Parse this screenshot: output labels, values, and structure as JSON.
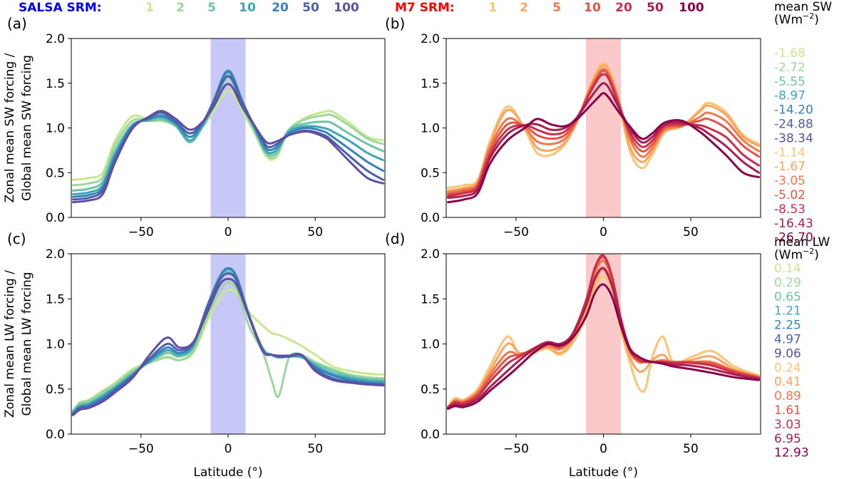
{
  "header": {
    "salsa_label": "SALSA SRM:",
    "salsa_color": "#0000ff",
    "m7_label": "M7 SRM:",
    "m7_color": "#ff0000",
    "levels": [
      "1",
      "2",
      "5",
      "10",
      "20",
      "50",
      "100"
    ],
    "salsa_colors": [
      "#c6e88f",
      "#9dd69f",
      "#6cc3a8",
      "#3fa6b8",
      "#3682ba",
      "#4d5fa9",
      "#5e4fa2"
    ],
    "m7_colors": [
      "#fdc474",
      "#f9a45f",
      "#f0784b",
      "#e35346",
      "#c92f4b",
      "#a81e4f",
      "#8a004b"
    ]
  },
  "legend_sw": {
    "title_line1": "mean SW",
    "title_line2": "(Wm",
    "title_sup": "−2",
    "title_end": ")",
    "salsa_values": [
      "-1.68",
      "-2.72",
      "-5.55",
      "-8.97",
      "-14.20",
      "-24.88",
      "-38.34"
    ],
    "m7_values": [
      "-1.14",
      "-1.67",
      "-3.05",
      "-5.02",
      "-8.53",
      "-16.43",
      "-26.70"
    ]
  },
  "legend_lw": {
    "title_line1": "mean LW",
    "title_line2": "(Wm",
    "title_sup": "−2",
    "title_end": ")",
    "salsa_values": [
      "0.14",
      "0.29",
      "0.65",
      "1.21",
      "2.25",
      "4.97",
      "9.06"
    ],
    "m7_values": [
      "0.24",
      "0.41",
      "0.89",
      "1.61",
      "3.03",
      "6.95",
      "12.93"
    ]
  },
  "chart_data": [
    {
      "type": "line",
      "panel_label": "(a)",
      "ylabel": [
        "Zonal mean SW forcing /",
        "Global mean SW forcing"
      ],
      "xlabel": "",
      "xlim": [
        -90,
        90
      ],
      "ylim": [
        0,
        2
      ],
      "xticks": [
        -50,
        0,
        50
      ],
      "xtick_labels": [
        "−50",
        "0",
        "50"
      ],
      "yticks": [
        0,
        0.5,
        1,
        1.5,
        2
      ],
      "ytick_labels": [
        "0.0",
        "0.5",
        "1.0",
        "1.5",
        "2.0"
      ],
      "shade": {
        "x": [
          -10,
          10
        ],
        "color": "#c8c8f8"
      },
      "x": [
        -89,
        -80,
        -72,
        -65,
        -55,
        -45,
        -38,
        -30,
        -22,
        -15,
        -8,
        -3,
        0,
        3,
        8,
        15,
        22,
        28,
        35,
        45,
        55,
        60,
        70,
        80,
        89
      ],
      "series": [
        {
          "values": [
            0.42,
            0.44,
            0.5,
            0.85,
            1.13,
            1.08,
            1.08,
            1.05,
            0.9,
            1.0,
            1.2,
            1.36,
            1.42,
            1.38,
            1.2,
            0.95,
            0.68,
            0.68,
            0.98,
            1.12,
            1.18,
            1.18,
            1.05,
            0.9,
            0.86
          ]
        },
        {
          "values": [
            0.36,
            0.38,
            0.45,
            0.8,
            1.08,
            1.08,
            1.08,
            1.02,
            0.85,
            1.0,
            1.24,
            1.44,
            1.5,
            1.44,
            1.24,
            0.97,
            0.7,
            0.7,
            0.98,
            1.1,
            1.14,
            1.14,
            1.02,
            0.88,
            0.82
          ]
        },
        {
          "values": [
            0.3,
            0.32,
            0.4,
            0.74,
            1.04,
            1.08,
            1.1,
            1.02,
            0.84,
            1.0,
            1.27,
            1.5,
            1.57,
            1.5,
            1.27,
            0.99,
            0.72,
            0.73,
            0.98,
            1.05,
            1.07,
            1.05,
            0.93,
            0.82,
            0.74
          ]
        },
        {
          "values": [
            0.26,
            0.28,
            0.36,
            0.7,
            1.02,
            1.1,
            1.12,
            1.04,
            0.86,
            1.02,
            1.3,
            1.55,
            1.62,
            1.55,
            1.3,
            1.01,
            0.74,
            0.76,
            0.96,
            1.02,
            1.0,
            0.96,
            0.85,
            0.72,
            0.64
          ]
        },
        {
          "values": [
            0.23,
            0.25,
            0.33,
            0.67,
            1.02,
            1.1,
            1.14,
            1.05,
            0.9,
            1.04,
            1.32,
            1.57,
            1.64,
            1.57,
            1.31,
            1.02,
            0.77,
            0.79,
            0.94,
            1.0,
            0.96,
            0.9,
            0.76,
            0.62,
            0.52
          ]
        },
        {
          "values": [
            0.2,
            0.22,
            0.3,
            0.64,
            1.0,
            1.12,
            1.17,
            1.07,
            0.94,
            1.05,
            1.3,
            1.52,
            1.58,
            1.52,
            1.28,
            1.03,
            0.8,
            0.82,
            0.92,
            0.97,
            0.92,
            0.85,
            0.68,
            0.52,
            0.42
          ]
        },
        {
          "values": [
            0.17,
            0.19,
            0.26,
            0.61,
            0.99,
            1.13,
            1.19,
            1.1,
            0.98,
            1.06,
            1.25,
            1.44,
            1.49,
            1.44,
            1.24,
            1.03,
            0.84,
            0.85,
            0.92,
            0.96,
            0.9,
            0.82,
            0.62,
            0.44,
            0.38
          ]
        }
      ]
    },
    {
      "type": "line",
      "panel_label": "(b)",
      "ylabel": [],
      "xlabel": "",
      "xlim": [
        -90,
        90
      ],
      "ylim": [
        0,
        2
      ],
      "xticks": [
        -50,
        0,
        50
      ],
      "xtick_labels": [
        "−50",
        "0",
        "50"
      ],
      "yticks": [
        0,
        0.5,
        1,
        1.5,
        2
      ],
      "ytick_labels": [
        "0.0",
        "0.5",
        "1.0",
        "1.5",
        "2.0"
      ],
      "shade": {
        "x": [
          -10,
          10
        ],
        "color": "#fbc9c9"
      },
      "x": [
        -89,
        -80,
        -72,
        -65,
        -55,
        -45,
        -38,
        -30,
        -22,
        -15,
        -8,
        -3,
        0,
        3,
        8,
        15,
        22,
        28,
        35,
        45,
        55,
        60,
        70,
        80,
        89
      ],
      "series": [
        {
          "values": [
            0.33,
            0.36,
            0.42,
            0.85,
            1.24,
            0.98,
            0.72,
            0.7,
            0.82,
            1.08,
            1.45,
            1.66,
            1.72,
            1.66,
            1.36,
            0.75,
            0.55,
            0.7,
            0.95,
            1.02,
            1.2,
            1.28,
            1.18,
            0.92,
            0.82
          ]
        },
        {
          "values": [
            0.3,
            0.33,
            0.4,
            0.82,
            1.2,
            1.0,
            0.78,
            0.75,
            0.84,
            1.08,
            1.44,
            1.64,
            1.7,
            1.64,
            1.36,
            0.8,
            0.62,
            0.74,
            0.96,
            1.02,
            1.18,
            1.25,
            1.15,
            0.9,
            0.8
          ]
        },
        {
          "values": [
            0.28,
            0.31,
            0.38,
            0.78,
            1.1,
            1.0,
            0.85,
            0.82,
            0.88,
            1.08,
            1.42,
            1.6,
            1.66,
            1.6,
            1.35,
            0.88,
            0.68,
            0.78,
            0.98,
            1.02,
            1.12,
            1.17,
            1.08,
            0.86,
            0.74
          ]
        },
        {
          "values": [
            0.26,
            0.29,
            0.36,
            0.74,
            1.04,
            1.02,
            0.92,
            0.88,
            0.92,
            1.1,
            1.4,
            1.58,
            1.64,
            1.58,
            1.33,
            0.92,
            0.74,
            0.82,
            1.0,
            1.03,
            1.08,
            1.1,
            1.0,
            0.8,
            0.68
          ]
        },
        {
          "values": [
            0.24,
            0.27,
            0.34,
            0.7,
            0.98,
            1.03,
            0.98,
            0.93,
            0.96,
            1.12,
            1.38,
            1.55,
            1.6,
            1.55,
            1.3,
            0.96,
            0.79,
            0.86,
            1.02,
            1.04,
            1.03,
            1.0,
            0.9,
            0.7,
            0.58
          ]
        },
        {
          "values": [
            0.22,
            0.24,
            0.31,
            0.66,
            0.93,
            1.03,
            1.04,
            0.98,
            1.0,
            1.12,
            1.32,
            1.45,
            1.5,
            1.45,
            1.26,
            1.0,
            0.84,
            0.9,
            1.04,
            1.06,
            1.0,
            0.94,
            0.8,
            0.62,
            0.5
          ]
        },
        {
          "values": [
            0.17,
            0.2,
            0.27,
            0.6,
            0.86,
            1.0,
            1.1,
            1.04,
            1.02,
            1.1,
            1.24,
            1.34,
            1.39,
            1.34,
            1.2,
            1.02,
            0.88,
            0.94,
            1.06,
            1.08,
            0.96,
            0.88,
            0.7,
            0.5,
            0.45
          ]
        }
      ]
    },
    {
      "type": "line",
      "panel_label": "(c)",
      "ylabel": [
        "Zonal mean LW forcing /",
        "Global mean LW forcing"
      ],
      "xlabel": "Latitude (°)",
      "xlim": [
        -90,
        90
      ],
      "ylim": [
        0,
        2
      ],
      "xticks": [
        -50,
        0,
        50
      ],
      "xtick_labels": [
        "−50",
        "0",
        "50"
      ],
      "yticks": [
        0,
        0.5,
        1,
        1.5,
        2
      ],
      "ytick_labels": [
        "0.0",
        "0.5",
        "1.0",
        "1.5",
        "2.0"
      ],
      "shade": {
        "x": [
          -10,
          10
        ],
        "color": "#c8c8f8"
      },
      "x": [
        -89,
        -85,
        -80,
        -72,
        -65,
        -55,
        -45,
        -35,
        -28,
        -20,
        -12,
        -5,
        0,
        5,
        12,
        20,
        25,
        29,
        35,
        42,
        50,
        60,
        70,
        80,
        89
      ],
      "series": [
        {
          "values": [
            0.26,
            0.35,
            0.38,
            0.48,
            0.57,
            0.72,
            0.8,
            0.86,
            0.82,
            0.9,
            1.25,
            1.5,
            1.6,
            1.56,
            1.35,
            1.2,
            1.12,
            1.1,
            1.05,
            0.98,
            0.88,
            0.75,
            0.7,
            0.67,
            0.66
          ]
        },
        {
          "values": [
            0.26,
            0.35,
            0.37,
            0.47,
            0.55,
            0.7,
            0.79,
            0.85,
            0.82,
            0.92,
            1.3,
            1.58,
            1.68,
            1.6,
            1.2,
            0.9,
            0.6,
            0.42,
            0.85,
            0.88,
            0.8,
            0.72,
            0.66,
            0.63,
            0.62
          ]
        },
        {
          "values": [
            0.25,
            0.33,
            0.35,
            0.44,
            0.53,
            0.68,
            0.8,
            0.9,
            0.86,
            0.96,
            1.4,
            1.7,
            1.8,
            1.7,
            1.3,
            0.95,
            0.88,
            0.85,
            0.86,
            0.85,
            0.78,
            0.7,
            0.64,
            0.61,
            0.6
          ]
        },
        {
          "values": [
            0.24,
            0.31,
            0.33,
            0.42,
            0.51,
            0.66,
            0.81,
            0.93,
            0.88,
            0.98,
            1.42,
            1.73,
            1.83,
            1.73,
            1.32,
            0.94,
            0.88,
            0.85,
            0.86,
            0.86,
            0.76,
            0.67,
            0.62,
            0.59,
            0.58
          ]
        },
        {
          "values": [
            0.23,
            0.3,
            0.32,
            0.4,
            0.5,
            0.65,
            0.82,
            0.96,
            0.9,
            1.0,
            1.42,
            1.74,
            1.84,
            1.74,
            1.32,
            0.93,
            0.88,
            0.86,
            0.86,
            0.87,
            0.74,
            0.65,
            0.6,
            0.57,
            0.56
          ]
        },
        {
          "values": [
            0.22,
            0.29,
            0.3,
            0.38,
            0.48,
            0.64,
            0.84,
            1.0,
            0.93,
            1.01,
            1.4,
            1.7,
            1.78,
            1.7,
            1.3,
            0.92,
            0.88,
            0.86,
            0.86,
            0.88,
            0.72,
            0.62,
            0.58,
            0.56,
            0.55
          ]
        },
        {
          "values": [
            0.21,
            0.27,
            0.29,
            0.36,
            0.46,
            0.62,
            0.88,
            1.07,
            0.96,
            1.02,
            1.35,
            1.65,
            1.72,
            1.65,
            1.3,
            0.92,
            0.88,
            0.87,
            0.87,
            0.88,
            0.7,
            0.6,
            0.57,
            0.55,
            0.54
          ]
        }
      ]
    },
    {
      "type": "line",
      "panel_label": "(d)",
      "ylabel": [],
      "xlabel": "Latitude (°)",
      "xlim": [
        -90,
        90
      ],
      "ylim": [
        0,
        2
      ],
      "xticks": [
        -50,
        0,
        50
      ],
      "xtick_labels": [
        "−50",
        "0",
        "50"
      ],
      "yticks": [
        0,
        0.5,
        1,
        1.5,
        2
      ],
      "ytick_labels": [
        "0.0",
        "0.5",
        "1.0",
        "1.5",
        "2.0"
      ],
      "shade": {
        "x": [
          -10,
          10
        ],
        "color": "#fbc9c9"
      },
      "x": [
        -89,
        -85,
        -80,
        -72,
        -65,
        -55,
        -48,
        -40,
        -32,
        -25,
        -18,
        -10,
        -5,
        0,
        5,
        10,
        15,
        20,
        24,
        28,
        34,
        40,
        50,
        62,
        75,
        89
      ],
      "series": [
        {
          "values": [
            0.3,
            0.4,
            0.38,
            0.5,
            0.75,
            1.08,
            0.88,
            0.9,
            0.95,
            0.88,
            1.0,
            1.3,
            1.62,
            1.75,
            1.58,
            1.15,
            0.8,
            0.52,
            0.5,
            0.85,
            1.08,
            0.8,
            0.85,
            0.92,
            0.75,
            0.65
          ]
        },
        {
          "values": [
            0.3,
            0.38,
            0.37,
            0.48,
            0.7,
            1.0,
            0.9,
            0.92,
            0.96,
            0.9,
            1.02,
            1.35,
            1.68,
            1.82,
            1.62,
            1.2,
            0.86,
            0.7,
            0.72,
            0.82,
            0.88,
            0.78,
            0.82,
            0.86,
            0.72,
            0.64
          ]
        },
        {
          "values": [
            0.3,
            0.37,
            0.36,
            0.46,
            0.66,
            0.9,
            0.88,
            0.92,
            0.98,
            0.94,
            1.06,
            1.42,
            1.78,
            1.92,
            1.7,
            1.26,
            0.92,
            0.8,
            0.8,
            0.8,
            0.82,
            0.8,
            0.8,
            0.8,
            0.7,
            0.63
          ]
        },
        {
          "values": [
            0.3,
            0.36,
            0.35,
            0.44,
            0.62,
            0.84,
            0.88,
            0.94,
            1.0,
            0.96,
            1.08,
            1.46,
            1.82,
            1.96,
            1.73,
            1.28,
            0.94,
            0.82,
            0.8,
            0.8,
            0.8,
            0.8,
            0.8,
            0.78,
            0.7,
            0.63
          ]
        },
        {
          "values": [
            0.29,
            0.35,
            0.34,
            0.42,
            0.58,
            0.78,
            0.86,
            0.95,
            1.02,
            0.98,
            1.1,
            1.48,
            1.84,
            1.98,
            1.74,
            1.28,
            0.94,
            0.83,
            0.8,
            0.8,
            0.8,
            0.79,
            0.79,
            0.76,
            0.68,
            0.62
          ]
        },
        {
          "values": [
            0.29,
            0.33,
            0.32,
            0.39,
            0.52,
            0.7,
            0.82,
            0.94,
            1.02,
            1.0,
            1.1,
            1.42,
            1.72,
            1.84,
            1.64,
            1.26,
            0.96,
            0.86,
            0.82,
            0.8,
            0.79,
            0.77,
            0.76,
            0.72,
            0.66,
            0.61
          ]
        },
        {
          "values": [
            0.28,
            0.31,
            0.3,
            0.36,
            0.48,
            0.64,
            0.76,
            0.9,
            1.0,
            0.98,
            1.06,
            1.3,
            1.56,
            1.66,
            1.52,
            1.2,
            0.94,
            0.86,
            0.82,
            0.8,
            0.78,
            0.75,
            0.72,
            0.68,
            0.63,
            0.6
          ]
        }
      ]
    }
  ]
}
